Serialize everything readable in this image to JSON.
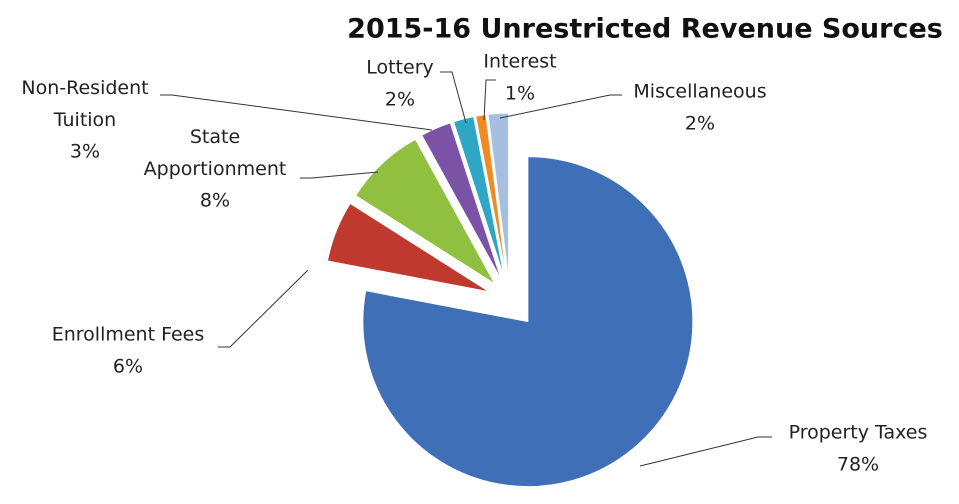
{
  "chart_data": {
    "type": "pie",
    "title": "2015-16 Unrestricted Revenue Sources",
    "categories": [
      "Property Taxes",
      "Enrollment Fees",
      "State Apportionment",
      "Non-Resident Tuition",
      "Lottery",
      "Interest",
      "Miscellaneous"
    ],
    "values": [
      78,
      6,
      8,
      3,
      2,
      1,
      2
    ],
    "value_labels": [
      "78%",
      "6%",
      "8%",
      "3%",
      "2%",
      "1%",
      "2%"
    ],
    "colors": [
      "#3f6fb6",
      "#c0392f",
      "#8fc040",
      "#7a52a6",
      "#2ea6c4",
      "#f08a24",
      "#a6bfe0"
    ]
  }
}
